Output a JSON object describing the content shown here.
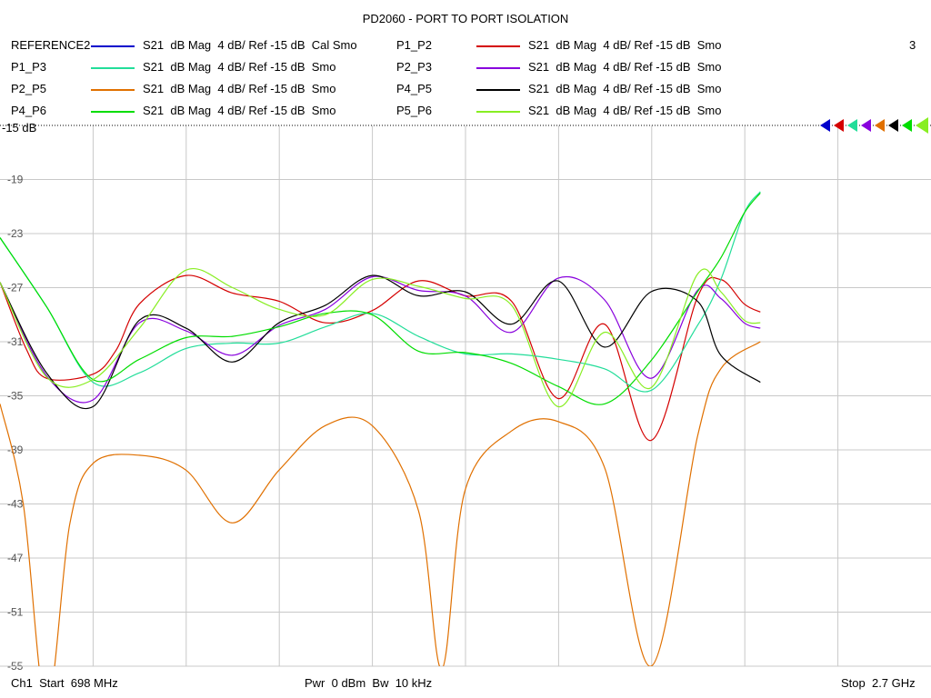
{
  "chart_data": {
    "type": "line",
    "title": "PD2060 - PORT TO PORT ISOLATION",
    "channel_number": "3",
    "x_range_mhz": [
      698,
      2700
    ],
    "ylim": [
      -55,
      -15
    ],
    "yticks": [
      -15,
      -19,
      -23,
      -27,
      -31,
      -35,
      -39,
      -43,
      -47,
      -51,
      -55
    ],
    "ytick_labels": [
      "-15 dB",
      "-19",
      "-23",
      "-27",
      "-31",
      "-35",
      "-39",
      "-43",
      "-47",
      "-51",
      "-55"
    ],
    "grid": true,
    "footer": {
      "start": "Ch1  Start  698 MHz",
      "power": "Pwr  0 dBm  Bw  10 kHz",
      "stop": "Stop  2.7 GHz"
    },
    "series": [
      {
        "name": "REFERENCE2",
        "desc": "S21  dB Mag  4 dB/ Ref -15 dB  Cal Smo",
        "color": "#0000cc",
        "points": []
      },
      {
        "name": "P1_P2",
        "desc": "S21  dB Mag  4 dB/ Ref -15 dB  Smo",
        "color": "#d40000",
        "points": [
          [
            698,
            -26.6
          ],
          [
            754,
            -31.5
          ],
          [
            798,
            -33.7
          ],
          [
            898,
            -33.4
          ],
          [
            948,
            -31.6
          ],
          [
            998,
            -28.2
          ],
          [
            1098,
            -26.1
          ],
          [
            1198,
            -27.4
          ],
          [
            1298,
            -28.0
          ],
          [
            1398,
            -29.6
          ],
          [
            1498,
            -28.7
          ],
          [
            1598,
            -26.5
          ],
          [
            1698,
            -27.6
          ],
          [
            1798,
            -28.0
          ],
          [
            1898,
            -35.2
          ],
          [
            1998,
            -29.7
          ],
          [
            2098,
            -38.3
          ],
          [
            2198,
            -27.7
          ],
          [
            2248,
            -26.4
          ],
          [
            2298,
            -28.2
          ],
          [
            2333,
            -28.8
          ]
        ]
      },
      {
        "name": "P1_P3",
        "desc": "S21  dB Mag  4 dB/ Ref -15 dB  Smo",
        "color": "#22dd99",
        "points": [
          [
            698,
            -23.3
          ],
          [
            798,
            -28.4
          ],
          [
            898,
            -34.0
          ],
          [
            998,
            -33.3
          ],
          [
            1098,
            -31.5
          ],
          [
            1198,
            -31.1
          ],
          [
            1298,
            -31.1
          ],
          [
            1398,
            -29.9
          ],
          [
            1498,
            -28.9
          ],
          [
            1598,
            -30.6
          ],
          [
            1698,
            -31.9
          ],
          [
            1798,
            -31.9
          ],
          [
            1898,
            -32.3
          ],
          [
            1998,
            -33.0
          ],
          [
            2098,
            -34.6
          ],
          [
            2198,
            -29.8
          ],
          [
            2248,
            -26.4
          ],
          [
            2298,
            -21.5
          ],
          [
            2333,
            -19.9
          ]
        ]
      },
      {
        "name": "P2_P3",
        "desc": "S21  dB Mag  4 dB/ Ref -15 dB  Smo",
        "color": "#8800dd",
        "points": [
          [
            698,
            -26.6
          ],
          [
            798,
            -33.5
          ],
          [
            898,
            -35.3
          ],
          [
            998,
            -29.6
          ],
          [
            1098,
            -30.2
          ],
          [
            1198,
            -32.0
          ],
          [
            1298,
            -29.8
          ],
          [
            1398,
            -28.6
          ],
          [
            1498,
            -26.2
          ],
          [
            1598,
            -27.2
          ],
          [
            1698,
            -27.6
          ],
          [
            1798,
            -30.3
          ],
          [
            1898,
            -26.3
          ],
          [
            1998,
            -27.9
          ],
          [
            2098,
            -33.7
          ],
          [
            2198,
            -27.2
          ],
          [
            2248,
            -27.8
          ],
          [
            2298,
            -29.6
          ],
          [
            2333,
            -30.0
          ]
        ]
      },
      {
        "name": "P2_P5",
        "desc": "S21  dB Mag  4 dB/ Ref -15 dB  Smo",
        "color": "#e07000",
        "points": [
          [
            698,
            -35.6
          ],
          [
            748,
            -43.0
          ],
          [
            798,
            -58.0
          ],
          [
            848,
            -44.5
          ],
          [
            898,
            -40.0
          ],
          [
            998,
            -39.4
          ],
          [
            1098,
            -40.5
          ],
          [
            1198,
            -44.4
          ],
          [
            1298,
            -40.5
          ],
          [
            1398,
            -37.2
          ],
          [
            1498,
            -37.2
          ],
          [
            1598,
            -43.5
          ],
          [
            1648,
            -55.2
          ],
          [
            1698,
            -42.0
          ],
          [
            1798,
            -37.6
          ],
          [
            1898,
            -36.9
          ],
          [
            1998,
            -40.3
          ],
          [
            2098,
            -55.0
          ],
          [
            2198,
            -38.0
          ],
          [
            2248,
            -33.0
          ],
          [
            2333,
            -31.0
          ]
        ]
      },
      {
        "name": "P4_P5",
        "desc": "S21  dB Mag  4 dB/ Ref -15 dB  Smo",
        "color": "#000000",
        "points": [
          [
            698,
            -26.6
          ],
          [
            798,
            -33.3
          ],
          [
            898,
            -35.8
          ],
          [
            998,
            -29.4
          ],
          [
            1098,
            -30.0
          ],
          [
            1198,
            -32.5
          ],
          [
            1298,
            -29.6
          ],
          [
            1398,
            -28.3
          ],
          [
            1498,
            -26.1
          ],
          [
            1598,
            -27.6
          ],
          [
            1698,
            -27.3
          ],
          [
            1798,
            -29.7
          ],
          [
            1898,
            -26.5
          ],
          [
            1998,
            -31.4
          ],
          [
            2098,
            -27.3
          ],
          [
            2198,
            -28.0
          ],
          [
            2248,
            -32.0
          ],
          [
            2333,
            -34.0
          ]
        ]
      },
      {
        "name": "P4_P6",
        "desc": "S21  dB Mag  4 dB/ Ref -15 dB  Smo",
        "color": "#00dd00",
        "points": [
          [
            698,
            -23.3
          ],
          [
            798,
            -28.4
          ],
          [
            898,
            -33.8
          ],
          [
            998,
            -32.3
          ],
          [
            1098,
            -30.7
          ],
          [
            1198,
            -30.6
          ],
          [
            1298,
            -29.9
          ],
          [
            1398,
            -28.9
          ],
          [
            1498,
            -29.0
          ],
          [
            1598,
            -31.7
          ],
          [
            1698,
            -31.8
          ],
          [
            1798,
            -32.6
          ],
          [
            1898,
            -34.3
          ],
          [
            1998,
            -35.6
          ],
          [
            2098,
            -32.4
          ],
          [
            2198,
            -27.3
          ],
          [
            2248,
            -24.8
          ],
          [
            2298,
            -21.5
          ],
          [
            2333,
            -20.0
          ]
        ]
      },
      {
        "name": "P5_P6",
        "desc": "S21  dB Mag  4 dB/ Ref -15 dB  Smo",
        "color": "#88ee22",
        "points": [
          [
            698,
            -26.6
          ],
          [
            798,
            -33.6
          ],
          [
            898,
            -33.8
          ],
          [
            998,
            -30.0
          ],
          [
            1098,
            -25.7
          ],
          [
            1198,
            -27.0
          ],
          [
            1298,
            -28.6
          ],
          [
            1398,
            -29.0
          ],
          [
            1498,
            -26.4
          ],
          [
            1598,
            -26.9
          ],
          [
            1698,
            -27.8
          ],
          [
            1798,
            -28.3
          ],
          [
            1898,
            -35.8
          ],
          [
            1998,
            -30.3
          ],
          [
            2098,
            -34.4
          ],
          [
            2198,
            -26.0
          ],
          [
            2248,
            -27.3
          ],
          [
            2298,
            -29.4
          ],
          [
            2333,
            -29.6
          ]
        ]
      }
    ]
  }
}
